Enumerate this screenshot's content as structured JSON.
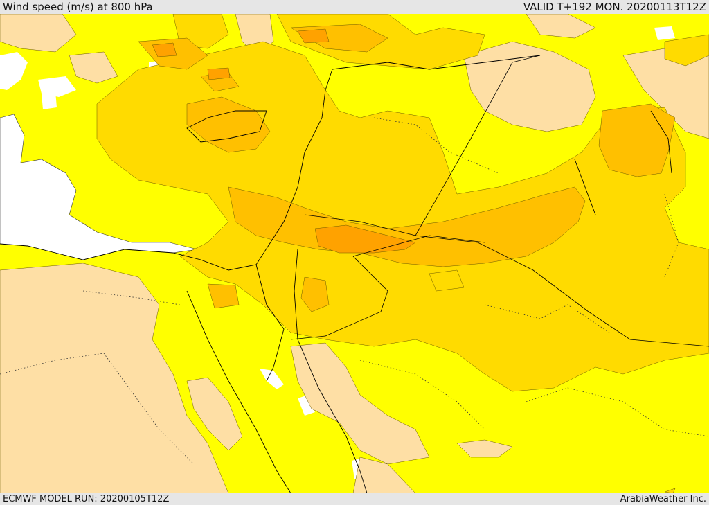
{
  "header": {
    "title": "Wind speed (m/s) at 800 hPa",
    "valid": "VALID T+192 MON. 20200113T12Z"
  },
  "footer": {
    "model_run": "ECMWF MODEL RUN: 20200105T12Z",
    "credit": "ArabiaWeather Inc."
  },
  "palette": {
    "sea": "#ffffff",
    "low_wind": "#fedfa5",
    "wind_band_1": "#ffff00",
    "wind_band_2": "#ffdb00",
    "wind_band_3": "#ffc000",
    "wind_band_4": "#ffa200",
    "wind_band_5": "#ff7e00",
    "coastline": "#000000",
    "contour": "#6b5a00"
  }
}
